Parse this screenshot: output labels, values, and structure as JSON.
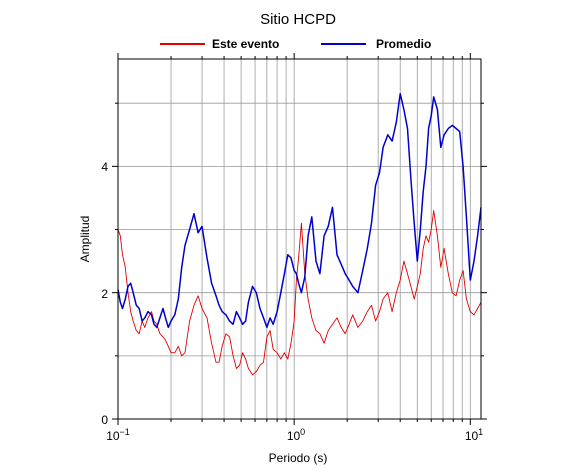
{
  "chart_data": {
    "type": "line",
    "title": "Sitio HCPD",
    "xlabel": "Periodo (s)",
    "ylabel": "Amplitud",
    "x_scale": "log",
    "xlim": [
      0.1,
      11.5
    ],
    "ylim": [
      0,
      5.7
    ],
    "grid": true,
    "legend_position": "top",
    "x_ticks": [
      {
        "value": 0.1,
        "mantissa": "10",
        "exponent": "−1"
      },
      {
        "value": 1,
        "mantissa": "10",
        "exponent": "0"
      },
      {
        "value": 10,
        "mantissa": "10",
        "exponent": "1"
      }
    ],
    "y_ticks": [
      {
        "value": 0,
        "label": "0"
      },
      {
        "value": 2,
        "label": "2"
      },
      {
        "value": 4,
        "label": "4"
      }
    ],
    "series": [
      {
        "name": "Este evento",
        "color": "#e00000",
        "x": [
          0.1,
          0.103,
          0.106,
          0.11,
          0.114,
          0.118,
          0.122,
          0.127,
          0.132,
          0.137,
          0.142,
          0.148,
          0.155,
          0.16,
          0.166,
          0.173,
          0.18,
          0.186,
          0.193,
          0.2,
          0.21,
          0.22,
          0.23,
          0.24,
          0.255,
          0.27,
          0.285,
          0.3,
          0.32,
          0.34,
          0.36,
          0.375,
          0.39,
          0.41,
          0.43,
          0.45,
          0.47,
          0.49,
          0.51,
          0.53,
          0.55,
          0.58,
          0.61,
          0.64,
          0.67,
          0.7,
          0.73,
          0.76,
          0.8,
          0.84,
          0.88,
          0.92,
          0.96,
          1.0,
          1.03,
          1.06,
          1.1,
          1.15,
          1.2,
          1.26,
          1.33,
          1.4,
          1.48,
          1.56,
          1.65,
          1.75,
          1.85,
          1.95,
          2.05,
          2.15,
          2.3,
          2.45,
          2.6,
          2.75,
          2.9,
          3.05,
          3.2,
          3.4,
          3.6,
          3.8,
          4.0,
          4.2,
          4.4,
          4.6,
          4.8,
          5.0,
          5.2,
          5.4,
          5.6,
          5.8,
          6.0,
          6.2,
          6.5,
          6.8,
          7.1,
          7.5,
          7.9,
          8.3,
          8.7,
          9.1,
          9.5,
          10.0,
          10.5,
          11.0,
          11.5
        ],
        "y": [
          3.0,
          2.9,
          2.6,
          2.4,
          2.0,
          1.7,
          1.55,
          1.4,
          1.35,
          1.55,
          1.45,
          1.6,
          1.7,
          1.55,
          1.5,
          1.35,
          1.3,
          1.25,
          1.15,
          1.05,
          1.05,
          1.15,
          1.0,
          1.05,
          1.55,
          1.8,
          1.95,
          1.75,
          1.6,
          1.2,
          0.9,
          0.9,
          1.15,
          1.35,
          1.3,
          1.0,
          0.8,
          0.85,
          1.05,
          0.95,
          0.8,
          0.7,
          0.75,
          0.85,
          0.9,
          1.3,
          1.4,
          1.1,
          1.05,
          0.95,
          1.05,
          0.95,
          1.2,
          1.55,
          2.2,
          2.55,
          3.1,
          2.3,
          1.9,
          1.6,
          1.4,
          1.35,
          1.2,
          1.4,
          1.5,
          1.6,
          1.45,
          1.35,
          1.5,
          1.65,
          1.45,
          1.55,
          1.7,
          1.8,
          1.55,
          1.7,
          1.9,
          2.0,
          1.7,
          2.0,
          2.2,
          2.5,
          2.3,
          2.1,
          1.9,
          2.1,
          2.3,
          2.7,
          2.9,
          2.8,
          3.0,
          3.3,
          2.9,
          2.4,
          2.7,
          2.3,
          2.0,
          1.95,
          2.2,
          2.35,
          1.9,
          1.7,
          1.65,
          1.75,
          1.85
        ]
      },
      {
        "name": "Promedio",
        "color": "#0000cc",
        "x": [
          0.1,
          0.103,
          0.106,
          0.11,
          0.114,
          0.118,
          0.122,
          0.127,
          0.132,
          0.137,
          0.142,
          0.148,
          0.155,
          0.16,
          0.166,
          0.173,
          0.18,
          0.186,
          0.193,
          0.2,
          0.21,
          0.22,
          0.23,
          0.24,
          0.255,
          0.27,
          0.285,
          0.3,
          0.32,
          0.34,
          0.36,
          0.375,
          0.39,
          0.41,
          0.43,
          0.45,
          0.47,
          0.49,
          0.51,
          0.53,
          0.55,
          0.58,
          0.61,
          0.64,
          0.67,
          0.7,
          0.73,
          0.76,
          0.8,
          0.84,
          0.88,
          0.92,
          0.96,
          1.0,
          1.03,
          1.06,
          1.1,
          1.15,
          1.2,
          1.26,
          1.33,
          1.4,
          1.48,
          1.56,
          1.65,
          1.75,
          1.85,
          1.95,
          2.05,
          2.15,
          2.3,
          2.45,
          2.6,
          2.75,
          2.9,
          3.05,
          3.2,
          3.4,
          3.6,
          3.8,
          4.0,
          4.2,
          4.4,
          4.6,
          4.8,
          5.0,
          5.2,
          5.4,
          5.6,
          5.8,
          6.0,
          6.2,
          6.5,
          6.8,
          7.1,
          7.5,
          7.9,
          8.3,
          8.7,
          9.1,
          9.5,
          10.0,
          10.5,
          11.0,
          11.5
        ],
        "y": [
          2.05,
          1.85,
          1.75,
          1.9,
          2.1,
          2.15,
          2.0,
          1.8,
          1.75,
          1.55,
          1.6,
          1.7,
          1.65,
          1.5,
          1.45,
          1.6,
          1.75,
          1.6,
          1.45,
          1.55,
          1.65,
          1.9,
          2.4,
          2.75,
          3.0,
          3.25,
          2.95,
          3.05,
          2.55,
          2.15,
          1.95,
          1.8,
          1.7,
          1.65,
          1.55,
          1.5,
          1.7,
          1.6,
          1.5,
          1.55,
          1.85,
          2.1,
          2.0,
          1.75,
          1.6,
          1.45,
          1.6,
          1.5,
          1.7,
          2.0,
          2.3,
          2.6,
          2.55,
          2.35,
          2.3,
          2.15,
          2.0,
          2.25,
          2.9,
          3.2,
          2.5,
          2.3,
          2.9,
          3.05,
          3.35,
          2.6,
          2.45,
          2.3,
          2.2,
          2.1,
          2.0,
          2.35,
          2.7,
          3.1,
          3.7,
          3.9,
          4.3,
          4.5,
          4.4,
          4.7,
          5.15,
          4.9,
          4.6,
          3.8,
          3.1,
          2.5,
          3.0,
          3.6,
          4.0,
          4.6,
          4.8,
          5.1,
          4.9,
          4.3,
          4.5,
          4.6,
          4.65,
          4.6,
          4.55,
          4.0,
          3.2,
          2.2,
          2.5,
          2.9,
          3.35
        ]
      }
    ]
  }
}
